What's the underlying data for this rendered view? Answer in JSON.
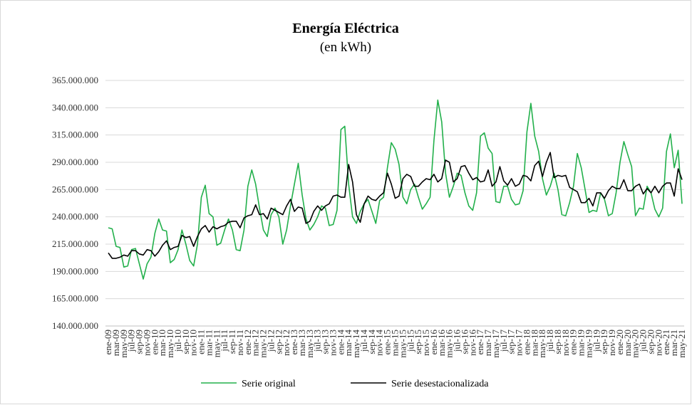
{
  "chart_data": {
    "type": "line",
    "title": "Energía Eléctrica",
    "subtitle": "(en kWh)",
    "categories": [
      "ene-09",
      null,
      "mar-09",
      null,
      "may-09",
      null,
      "jul-09",
      null,
      "sep-09",
      null,
      "nov-09",
      null,
      "ene-10",
      null,
      "mar-10",
      null,
      "may-10",
      null,
      "jul-10",
      null,
      "sep-10",
      null,
      "nov-10",
      null,
      "ene-11",
      null,
      "mar-11",
      null,
      "may-11",
      null,
      "jul-11",
      null,
      "sep-11",
      null,
      "nov-11",
      null,
      "ene-12",
      null,
      "mar-12",
      null,
      "may-12",
      null,
      "jul-12",
      null,
      "sep-12",
      null,
      "nov-12",
      null,
      "ene-13",
      null,
      "mar-13",
      null,
      "may-13",
      null,
      "jul-13",
      null,
      "sep-13",
      null,
      "nov-13",
      null,
      "ene-14",
      null,
      "mar-14",
      null,
      "may-14",
      null,
      "jul-14",
      null,
      "sep-14",
      null,
      "nov-14",
      null,
      "ene-15",
      null,
      "mar-15",
      null,
      "may-15",
      null,
      "jul-15",
      null,
      "sep-15",
      null,
      "nov-15",
      null,
      "ene-16",
      null,
      "mar-16",
      null,
      "may-16",
      null,
      "jul-16",
      null,
      "sep-16",
      null,
      "nov-16",
      null,
      "ene-17",
      null,
      "mar-17",
      null,
      "may-17",
      null,
      "jul-17",
      null,
      "sep-17",
      null,
      "nov-17",
      null,
      "ene-18",
      null,
      "mar-18",
      null,
      "may-18",
      null,
      "jul-18",
      null,
      "sep-18",
      null,
      "nov-18",
      null,
      "ene-19",
      null,
      "mar-19",
      null,
      "may-19",
      null,
      "jul-19",
      null,
      "sep-19",
      null,
      "nov-19",
      null,
      "ene-20",
      null,
      "mar-20",
      null,
      "may-20",
      null,
      "jul-20",
      null,
      "sep-20",
      null,
      "nov-20",
      null,
      "ene-21",
      null,
      "mar-21",
      null,
      "may-21"
    ],
    "series": [
      {
        "name": "Serie original",
        "color": "#22b04b",
        "values": [
          230000000,
          229000000,
          213000000,
          212000000,
          194000000,
          195000000,
          210000000,
          211000000,
          197000000,
          183000000,
          197000000,
          203000000,
          225000000,
          238000000,
          228000000,
          227000000,
          198000000,
          201000000,
          210000000,
          228000000,
          215000000,
          200000000,
          195000000,
          215000000,
          258000000,
          269000000,
          243000000,
          240000000,
          214000000,
          216000000,
          228000000,
          238000000,
          228000000,
          210000000,
          209000000,
          228000000,
          268000000,
          283000000,
          270000000,
          248000000,
          228000000,
          222000000,
          242000000,
          248000000,
          240000000,
          215000000,
          228000000,
          250000000,
          270000000,
          289000000,
          260000000,
          238000000,
          228000000,
          233000000,
          240000000,
          250000000,
          248000000,
          232000000,
          233000000,
          246000000,
          320000000,
          323000000,
          270000000,
          240000000,
          234000000,
          245000000,
          252000000,
          256000000,
          245000000,
          234000000,
          255000000,
          258000000,
          285000000,
          308000000,
          302000000,
          288000000,
          258000000,
          252000000,
          265000000,
          270000000,
          258000000,
          247000000,
          252000000,
          258000000,
          310000000,
          347000000,
          327000000,
          280000000,
          258000000,
          268000000,
          280000000,
          278000000,
          262000000,
          250000000,
          246000000,
          262000000,
          314000000,
          317000000,
          303000000,
          298000000,
          254000000,
          253000000,
          268000000,
          268000000,
          256000000,
          251000000,
          252000000,
          264000000,
          318000000,
          344000000,
          314000000,
          300000000,
          275000000,
          260000000,
          268000000,
          280000000,
          265000000,
          242000000,
          241000000,
          253000000,
          268000000,
          298000000,
          285000000,
          265000000,
          244000000,
          246000000,
          245000000,
          262000000,
          256000000,
          241000000,
          243000000,
          262000000,
          290000000,
          309000000,
          297000000,
          286000000,
          241000000,
          248000000,
          247000000,
          268000000,
          262000000,
          247000000,
          240000000,
          248000000,
          300000000,
          316000000,
          285000000,
          301000000,
          252000000
        ]
      },
      {
        "name": "Serie desestacionalizada",
        "color": "#000000",
        "values": [
          207000000,
          202000000,
          202000000,
          203000000,
          205000000,
          204000000,
          209000000,
          209000000,
          206000000,
          205000000,
          210000000,
          209000000,
          204000000,
          208000000,
          214000000,
          218000000,
          210000000,
          212000000,
          213000000,
          223000000,
          221000000,
          222000000,
          213000000,
          222000000,
          229000000,
          232000000,
          226000000,
          231000000,
          229000000,
          231000000,
          232000000,
          235000000,
          236000000,
          236000000,
          230000000,
          239000000,
          241000000,
          242000000,
          251000000,
          242000000,
          243000000,
          238000000,
          248000000,
          246000000,
          244000000,
          242000000,
          250000000,
          256000000,
          245000000,
          249000000,
          248000000,
          234000000,
          236000000,
          245000000,
          250000000,
          246000000,
          250000000,
          252000000,
          259000000,
          260000000,
          258000000,
          258000000,
          288000000,
          272000000,
          242000000,
          235000000,
          252000000,
          259000000,
          256000000,
          255000000,
          259000000,
          262000000,
          280000000,
          270000000,
          257000000,
          259000000,
          275000000,
          279000000,
          277000000,
          268000000,
          268000000,
          272000000,
          275000000,
          274000000,
          279000000,
          272000000,
          275000000,
          292000000,
          290000000,
          272000000,
          275000000,
          286000000,
          287000000,
          280000000,
          274000000,
          276000000,
          272000000,
          273000000,
          283000000,
          268000000,
          272000000,
          286000000,
          273000000,
          269000000,
          275000000,
          268000000,
          270000000,
          278000000,
          277000000,
          273000000,
          287000000,
          291000000,
          277000000,
          290000000,
          299000000,
          276000000,
          278000000,
          277000000,
          278000000,
          267000000,
          265000000,
          263000000,
          253000000,
          253000000,
          257000000,
          250000000,
          262000000,
          262000000,
          257000000,
          264000000,
          268000000,
          266000000,
          266000000,
          274000000,
          264000000,
          264000000,
          268000000,
          270000000,
          261000000,
          266000000,
          262000000,
          268000000,
          262000000,
          268000000,
          271000000,
          271000000,
          259000000,
          284000000,
          274000000
        ]
      }
    ],
    "ylim": [
      140000000,
      365000000
    ],
    "yticks": [
      {
        "value": 140000000,
        "label": "140.000.000"
      },
      {
        "value": 165000000,
        "label": "165.000.000"
      },
      {
        "value": 190000000,
        "label": "190.000.000"
      },
      {
        "value": 215000000,
        "label": "215.000.000"
      },
      {
        "value": 240000000,
        "label": "240.000.000"
      },
      {
        "value": 265000000,
        "label": "265.000.000"
      },
      {
        "value": 290000000,
        "label": "290.000.000"
      },
      {
        "value": 315000000,
        "label": "315.000.000"
      },
      {
        "value": 340000000,
        "label": "340.000.000"
      },
      {
        "value": 365000000,
        "label": "365.000.000"
      }
    ],
    "grid": true,
    "legend": "bottom"
  }
}
